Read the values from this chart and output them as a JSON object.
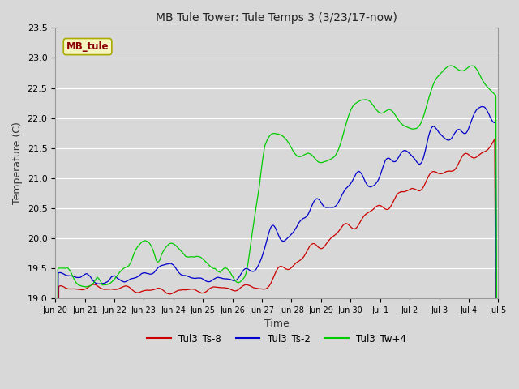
{
  "title": "MB Tule Tower: Tule Temps 3 (3/23/17-now)",
  "xlabel": "Time",
  "ylabel": "Temperature (C)",
  "ylim": [
    19.0,
    23.5
  ],
  "bg_color": "#d8d8d8",
  "plot_bg_color": "#d8d8d8",
  "grid_color": "#ffffff",
  "legend_labels": [
    "Tul3_Ts-8",
    "Tul3_Ts-2",
    "Tul3_Tw+4"
  ],
  "legend_colors": [
    "#cc0000",
    "#0000cc",
    "#00cc00"
  ],
  "station_label": "MB_tule",
  "xtick_labels": [
    "Jun 20",
    "Jun 21",
    "Jun 22",
    "Jun 23",
    "Jun 24",
    "Jun 25",
    "Jun 26",
    "Jun 27",
    "Jun 28",
    "Jun 29",
    "Jun 30",
    "Jul 1",
    "Jul 2",
    "Jul 3",
    "Jul 4",
    "Jul 5"
  ],
  "ytick_vals": [
    19.0,
    19.5,
    20.0,
    20.5,
    21.0,
    21.5,
    22.0,
    22.5,
    23.0,
    23.5
  ],
  "xlim": [
    0,
    15
  ],
  "figwidth": 6.4,
  "figheight": 4.8,
  "dpi": 100
}
